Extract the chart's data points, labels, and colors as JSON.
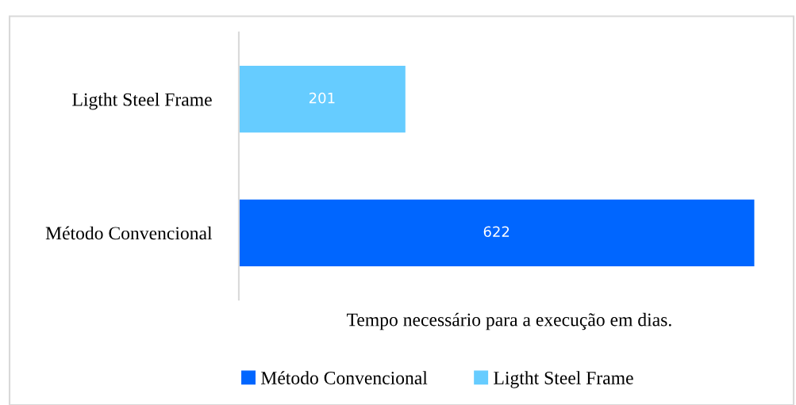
{
  "chart_data": {
    "type": "bar",
    "orientation": "horizontal",
    "categories": [
      "Ligtht Steel Frame",
      "Método Convencional"
    ],
    "series": [
      {
        "name": "Método Convencional",
        "color": "#0066ff",
        "values": [
          null,
          622
        ]
      },
      {
        "name": "Ligtht Steel Frame",
        "color": "#66ccff",
        "values": [
          201,
          null
        ]
      }
    ],
    "xlabel": "Tempo necessário para a execução em dias.",
    "data_labels": true,
    "tick_labels": "y",
    "grid": false,
    "legend": "bottom"
  }
}
